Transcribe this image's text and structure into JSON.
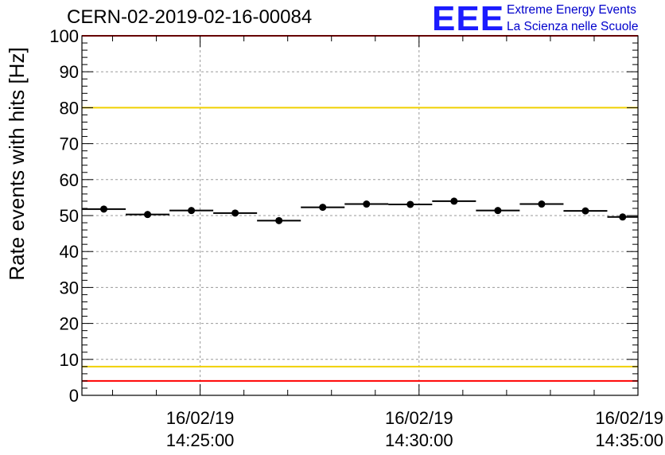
{
  "header": {
    "run_title": "CERN-02-2019-02-16-00084",
    "logo_text": "EEE",
    "logo_line1": "Extreme Energy Events",
    "logo_line2": "La Scienza nelle Scuole"
  },
  "colors": {
    "threshold_red": "#ff0000",
    "threshold_yellow": "#f0d000",
    "points": "#000000",
    "grid": "#9a9a9a",
    "logo_blue": "#1b1bff"
  },
  "chart_data": {
    "type": "scatter",
    "title": "CERN-02-2019-02-16-00084",
    "ylabel": "Rate events with hits [Hz]",
    "xlabel": "",
    "ylim": [
      0,
      100
    ],
    "yticks": [
      0,
      10,
      20,
      30,
      40,
      50,
      60,
      70,
      80,
      90,
      100
    ],
    "xlim": [
      "16/02/19 14:22:18",
      "16/02/19 14:35:00"
    ],
    "xticks": [
      {
        "date": "16/02/19",
        "time": "14:25:00"
      },
      {
        "date": "16/02/19",
        "time": "14:30:00"
      },
      {
        "date": "16/02/19",
        "time": "14:35:00"
      }
    ],
    "grid": true,
    "thresholds": [
      {
        "value": 100,
        "color": "red"
      },
      {
        "value": 80,
        "color": "yellow"
      },
      {
        "value": 8,
        "color": "yellow"
      },
      {
        "value": 4,
        "color": "red"
      }
    ],
    "bins": [
      {
        "start": "14:22:18",
        "end": "14:23:18",
        "value": 51.8
      },
      {
        "start": "14:23:18",
        "end": "14:24:18",
        "value": 50.3
      },
      {
        "start": "14:24:18",
        "end": "14:25:18",
        "value": 51.4
      },
      {
        "start": "14:25:18",
        "end": "14:26:18",
        "value": 50.7
      },
      {
        "start": "14:26:18",
        "end": "14:27:18",
        "value": 48.6
      },
      {
        "start": "14:27:18",
        "end": "14:28:18",
        "value": 52.3
      },
      {
        "start": "14:28:18",
        "end": "14:29:18",
        "value": 53.2
      },
      {
        "start": "14:29:18",
        "end": "14:30:18",
        "value": 53.1
      },
      {
        "start": "14:30:18",
        "end": "14:31:18",
        "value": 54.0
      },
      {
        "start": "14:31:18",
        "end": "14:32:18",
        "value": 51.4
      },
      {
        "start": "14:32:18",
        "end": "14:33:18",
        "value": 53.2
      },
      {
        "start": "14:33:18",
        "end": "14:34:18",
        "value": 51.3
      },
      {
        "start": "14:34:18",
        "end": "14:35:18",
        "value": 49.6
      }
    ]
  }
}
